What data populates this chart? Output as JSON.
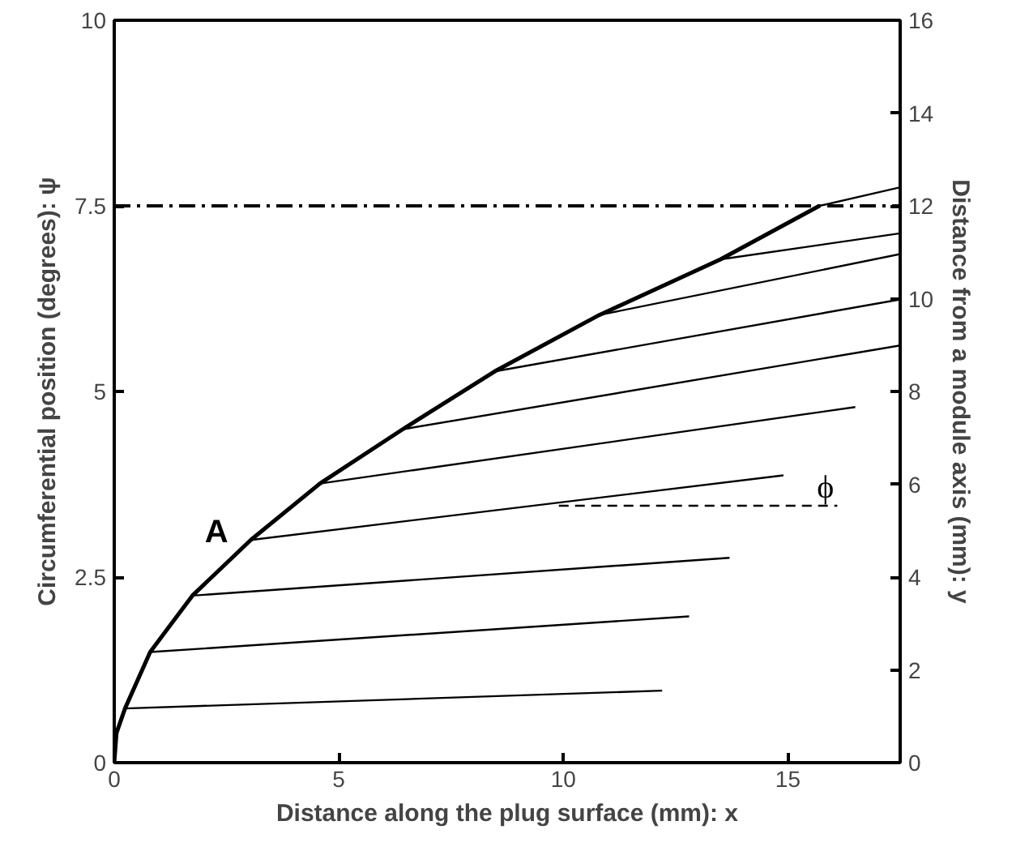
{
  "chart_data": {
    "type": "line",
    "xlabel": "Distance along the plug surface (mm): x",
    "ylabel": "Circumferential position (degrees): ψ",
    "y2label": "Distance from a module axis (mm): y",
    "xlim": [
      0,
      17.5
    ],
    "xticks": [
      0,
      5,
      10,
      15
    ],
    "ylim": [
      0,
      10
    ],
    "yticks": [
      0,
      2.5,
      5,
      7.5,
      10
    ],
    "y2lim": [
      0,
      16
    ],
    "y2ticks": [
      0,
      2,
      4,
      6,
      8,
      10,
      12,
      14,
      16
    ],
    "grid": false,
    "series": [
      {
        "color": "#000000",
        "x": [
          0,
          0.05,
          0.24,
          0.8,
          1.74,
          3.04,
          4.58,
          6.42,
          8.47,
          10.8,
          13.5,
          15.7
        ],
        "values": [
          0,
          0.4,
          0.73,
          1.49,
          2.25,
          3.0,
          3.76,
          4.49,
          5.27,
          6.03,
          6.78,
          7.5
        ]
      },
      {
        "color": "#000000",
        "x": [
          0.24,
          12.2
        ],
        "values": [
          0.73,
          0.97
        ]
      },
      {
        "color": "#000000",
        "x": [
          0.8,
          12.8
        ],
        "values": [
          1.49,
          1.97
        ]
      },
      {
        "color": "#000000",
        "x": [
          1.74,
          13.7
        ],
        "values": [
          2.25,
          2.76
        ]
      },
      {
        "color": "#000000",
        "x": [
          3.04,
          14.9
        ],
        "values": [
          3.0,
          3.87
        ]
      },
      {
        "color": "#000000",
        "x": [
          4.58,
          16.5
        ],
        "values": [
          3.76,
          4.79
        ]
      },
      {
        "color": "#000000",
        "x": [
          6.42,
          17.5
        ],
        "values": [
          4.49,
          5.62
        ]
      },
      {
        "color": "#000000",
        "x": [
          8.47,
          17.5
        ],
        "values": [
          5.27,
          6.24
        ]
      },
      {
        "color": "#000000",
        "x": [
          10.8,
          17.5
        ],
        "values": [
          6.03,
          6.85
        ]
      },
      {
        "color": "#000000",
        "x": [
          13.5,
          17.5
        ],
        "values": [
          6.78,
          7.13
        ]
      },
      {
        "color": "#000000",
        "x": [
          15.7,
          17.5
        ],
        "values": [
          7.5,
          7.75
        ]
      },
      {
        "color": "#000000",
        "x": [
          9.9,
          16.1
        ],
        "values": [
          3.46,
          3.46
        ],
        "line_style": "dashed"
      }
    ],
    "ref_lines": [
      {
        "axis": "y",
        "value": 7.5,
        "line_style": "dashdot",
        "color": "#000000"
      }
    ],
    "annotations": [
      "A",
      "ϕ"
    ]
  }
}
